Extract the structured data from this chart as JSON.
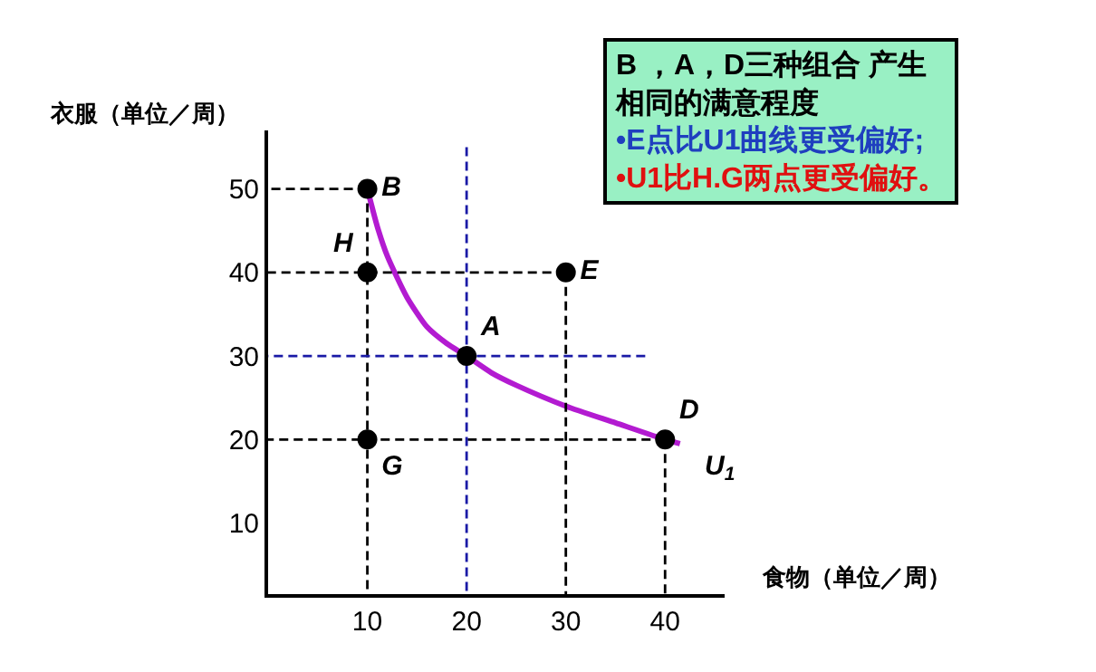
{
  "chart_data": {
    "type": "line",
    "xlabel": "食物（单位／周）",
    "ylabel": "衣服（单位／周）",
    "xlim": [
      0,
      46
    ],
    "ylim": [
      1.5,
      57
    ],
    "xticks": [
      10,
      20,
      30,
      40
    ],
    "yticks": [
      10,
      20,
      30,
      40,
      50
    ],
    "series": [
      {
        "name": "U$_{1}$",
        "color": "#b31bd1",
        "line_style": "solid",
        "x": [
          10,
          11,
          12,
          14,
          16,
          18,
          20,
          22.5,
          25,
          30,
          35,
          40,
          41.5
        ],
        "values": [
          50,
          45.5,
          42,
          37,
          33.5,
          31.5,
          30,
          28,
          26.5,
          24,
          22,
          20,
          19.5
        ]
      },
      {
        "type": "line",
        "color": "#000000",
        "line_style": "dashed",
        "x": [
          0,
          10
        ],
        "values": [
          50,
          50
        ]
      },
      {
        "type": "line",
        "color": "#000000",
        "line_style": "dashed",
        "x": [
          0,
          30
        ],
        "values": [
          40,
          40
        ]
      },
      {
        "type": "line",
        "color": "#000000",
        "line_style": "dashed",
        "x": [
          0,
          40
        ],
        "values": [
          20,
          20
        ]
      },
      {
        "type": "line",
        "color": "#000000",
        "line_style": "dashed",
        "x": [
          10,
          10
        ],
        "values": [
          1.5,
          50
        ]
      },
      {
        "type": "line",
        "color": "#000000",
        "line_style": "dashed",
        "x": [
          30,
          30
        ],
        "values": [
          1.5,
          40
        ]
      },
      {
        "type": "line",
        "color": "#000000",
        "line_style": "dashed",
        "x": [
          40,
          40
        ],
        "values": [
          1.5,
          20
        ]
      },
      {
        "type": "line",
        "color": "#1a1aa6",
        "line_style": "dashed",
        "x": [
          0,
          38
        ],
        "values": [
          30,
          30
        ]
      },
      {
        "type": "line",
        "color": "#1a1aa6",
        "line_style": "dashed",
        "x": [
          20,
          20
        ],
        "values": [
          1.5,
          55
        ]
      },
      {
        "type": "scatter",
        "color": "#000000",
        "marker": "circle",
        "x": [
          10,
          10,
          30,
          20,
          10,
          40
        ],
        "values": [
          50,
          40,
          40,
          30,
          20,
          20
        ],
        "value_labels": [
          "B",
          "H",
          "E",
          "A",
          "G",
          "D"
        ]
      }
    ],
    "annotations": [
      "B ，A，D三种组合 产生",
      "相同的满意程度",
      "•E点比U1曲线更受偏好;",
      "•U1比H.G两点更受偏好。"
    ]
  }
}
